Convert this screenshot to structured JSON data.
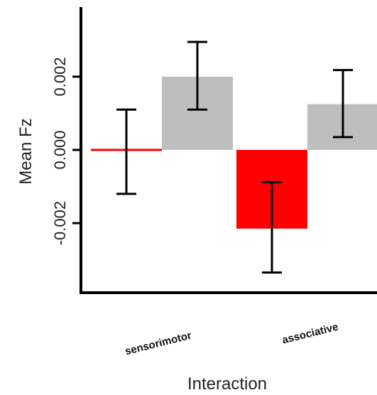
{
  "chart_data": {
    "type": "bar",
    "title": "",
    "xlabel": "Interaction",
    "ylabel": "Mean Fz",
    "categories": [
      "sensorimotor",
      "associative"
    ],
    "ylim": [
      -0.0039,
      0.0039
    ],
    "y_ticks": [
      -0.002,
      0.0,
      0.002
    ],
    "y_tick_labels": [
      "-0.002",
      "0.000",
      "0.002"
    ],
    "grid": false,
    "legend": "none",
    "series": [
      {
        "color": "#ff0000",
        "values": [
          -5e-05,
          -0.00215
        ],
        "error_low": [
          -0.0012,
          -0.00335
        ],
        "error_high": [
          0.0011,
          -0.00088
        ]
      },
      {
        "color": "#bebebe",
        "values": [
          0.002,
          0.00125
        ],
        "error_low": [
          0.0011,
          0.00035
        ],
        "error_high": [
          0.00295,
          0.00218
        ]
      }
    ]
  }
}
